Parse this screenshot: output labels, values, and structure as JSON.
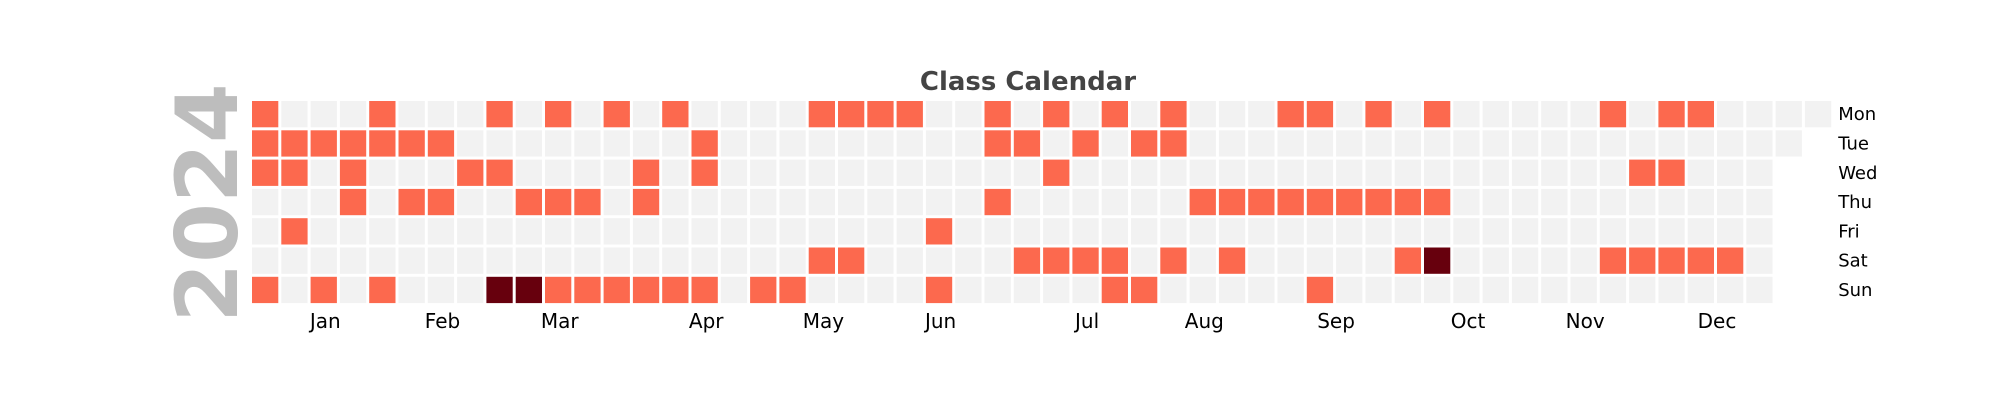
{
  "chart_data": {
    "type": "heatmap",
    "title": "Class Calendar",
    "year_label": "2024",
    "year": 2024,
    "start_date": "2024-01-01",
    "end_date": "2024-12-31",
    "weekday_labels": [
      "Mon",
      "Tue",
      "Wed",
      "Thu",
      "Fri",
      "Sat",
      "Sun"
    ],
    "month_labels": [
      "Jan",
      "Feb",
      "Mar",
      "Apr",
      "May",
      "Jun",
      "Jul",
      "Aug",
      "Sep",
      "Oct",
      "Nov",
      "Dec"
    ],
    "colors": {
      "empty": "#f2f2f2",
      "class": "#fc694e",
      "high": "#67000d",
      "title": "#444444",
      "year": "#bdbdbd",
      "label": "#000000"
    },
    "values": [
      {
        "date": "2024-01-01",
        "value": 1
      },
      {
        "date": "2024-01-02",
        "value": 1
      },
      {
        "date": "2024-01-03",
        "value": 1
      },
      {
        "date": "2024-01-07",
        "value": 1
      },
      {
        "date": "2024-01-09",
        "value": 1
      },
      {
        "date": "2024-01-10",
        "value": 1
      },
      {
        "date": "2024-01-12",
        "value": 1
      },
      {
        "date": "2024-01-16",
        "value": 1
      },
      {
        "date": "2024-01-21",
        "value": 1
      },
      {
        "date": "2024-01-23",
        "value": 1
      },
      {
        "date": "2024-01-24",
        "value": 1
      },
      {
        "date": "2024-01-25",
        "value": 1
      },
      {
        "date": "2024-01-29",
        "value": 1
      },
      {
        "date": "2024-01-30",
        "value": 1
      },
      {
        "date": "2024-02-04",
        "value": 1
      },
      {
        "date": "2024-02-06",
        "value": 1
      },
      {
        "date": "2024-02-08",
        "value": 1
      },
      {
        "date": "2024-02-13",
        "value": 1
      },
      {
        "date": "2024-02-15",
        "value": 1
      },
      {
        "date": "2024-02-21",
        "value": 1
      },
      {
        "date": "2024-02-26",
        "value": 1
      },
      {
        "date": "2024-02-28",
        "value": 1
      },
      {
        "date": "2024-03-03",
        "value": 2
      },
      {
        "date": "2024-03-07",
        "value": 1
      },
      {
        "date": "2024-03-10",
        "value": 2
      },
      {
        "date": "2024-03-11",
        "value": 1
      },
      {
        "date": "2024-03-14",
        "value": 1
      },
      {
        "date": "2024-03-17",
        "value": 1
      },
      {
        "date": "2024-03-21",
        "value": 1
      },
      {
        "date": "2024-03-24",
        "value": 1
      },
      {
        "date": "2024-03-25",
        "value": 1
      },
      {
        "date": "2024-03-31",
        "value": 1
      },
      {
        "date": "2024-04-03",
        "value": 1
      },
      {
        "date": "2024-04-04",
        "value": 1
      },
      {
        "date": "2024-04-07",
        "value": 1
      },
      {
        "date": "2024-04-08",
        "value": 1
      },
      {
        "date": "2024-04-14",
        "value": 1
      },
      {
        "date": "2024-04-16",
        "value": 1
      },
      {
        "date": "2024-04-17",
        "value": 1
      },
      {
        "date": "2024-04-21",
        "value": 1
      },
      {
        "date": "2024-05-05",
        "value": 1
      },
      {
        "date": "2024-05-12",
        "value": 1
      },
      {
        "date": "2024-05-13",
        "value": 1
      },
      {
        "date": "2024-05-18",
        "value": 1
      },
      {
        "date": "2024-05-20",
        "value": 1
      },
      {
        "date": "2024-05-25",
        "value": 1
      },
      {
        "date": "2024-05-27",
        "value": 1
      },
      {
        "date": "2024-06-03",
        "value": 1
      },
      {
        "date": "2024-06-14",
        "value": 1
      },
      {
        "date": "2024-06-16",
        "value": 1
      },
      {
        "date": "2024-06-24",
        "value": 1
      },
      {
        "date": "2024-06-25",
        "value": 1
      },
      {
        "date": "2024-06-27",
        "value": 1
      },
      {
        "date": "2024-07-02",
        "value": 1
      },
      {
        "date": "2024-07-06",
        "value": 1
      },
      {
        "date": "2024-07-08",
        "value": 1
      },
      {
        "date": "2024-07-10",
        "value": 1
      },
      {
        "date": "2024-07-13",
        "value": 1
      },
      {
        "date": "2024-07-16",
        "value": 1
      },
      {
        "date": "2024-07-20",
        "value": 1
      },
      {
        "date": "2024-07-22",
        "value": 1
      },
      {
        "date": "2024-07-27",
        "value": 1
      },
      {
        "date": "2024-07-28",
        "value": 1
      },
      {
        "date": "2024-07-30",
        "value": 1
      },
      {
        "date": "2024-08-04",
        "value": 1
      },
      {
        "date": "2024-08-05",
        "value": 1
      },
      {
        "date": "2024-08-06",
        "value": 1
      },
      {
        "date": "2024-08-10",
        "value": 1
      },
      {
        "date": "2024-08-15",
        "value": 1
      },
      {
        "date": "2024-08-22",
        "value": 1
      },
      {
        "date": "2024-08-24",
        "value": 1
      },
      {
        "date": "2024-08-29",
        "value": 1
      },
      {
        "date": "2024-09-02",
        "value": 1
      },
      {
        "date": "2024-09-05",
        "value": 1
      },
      {
        "date": "2024-09-09",
        "value": 1
      },
      {
        "date": "2024-09-12",
        "value": 1
      },
      {
        "date": "2024-09-15",
        "value": 1
      },
      {
        "date": "2024-09-19",
        "value": 1
      },
      {
        "date": "2024-09-23",
        "value": 1
      },
      {
        "date": "2024-09-26",
        "value": 1
      },
      {
        "date": "2024-10-03",
        "value": 1
      },
      {
        "date": "2024-10-05",
        "value": 1
      },
      {
        "date": "2024-10-07",
        "value": 1
      },
      {
        "date": "2024-10-10",
        "value": 1
      },
      {
        "date": "2024-10-12",
        "value": 2
      },
      {
        "date": "2024-11-18",
        "value": 1
      },
      {
        "date": "2024-11-23",
        "value": 1
      },
      {
        "date": "2024-11-27",
        "value": 1
      },
      {
        "date": "2024-11-30",
        "value": 1
      },
      {
        "date": "2024-12-02",
        "value": 1
      },
      {
        "date": "2024-12-04",
        "value": 1
      },
      {
        "date": "2024-12-07",
        "value": 1
      },
      {
        "date": "2024-12-09",
        "value": 1
      },
      {
        "date": "2024-12-14",
        "value": 1
      },
      {
        "date": "2024-12-21",
        "value": 1
      }
    ]
  }
}
